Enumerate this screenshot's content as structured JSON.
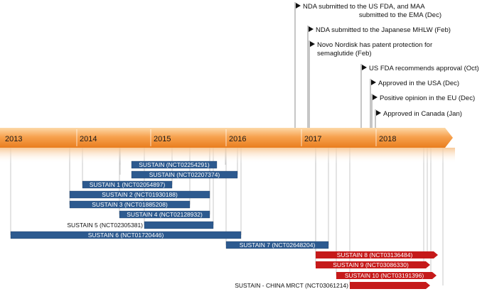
{
  "years": [
    "2013",
    "2014",
    "2015",
    "2016",
    "2017",
    "2018"
  ],
  "milestones": [
    {
      "lines": [
        "NDA submitted to the US FDA, and MAA",
        "submitted to the EMA (Dec)"
      ],
      "date": "2016-12"
    },
    {
      "lines": [
        "NDA submitted to the Japanese MHLW (Feb)"
      ],
      "date": "2017-02"
    },
    {
      "lines": [
        "Novo Nordisk has patent protection for",
        "semaglutide (Feb)"
      ],
      "date": "2017-02"
    },
    {
      "lines": [
        "US FDA recommends approval (Oct)"
      ],
      "date": "2017-10"
    },
    {
      "lines": [
        "Approved in the USA (Dec)"
      ],
      "date": "2017-12"
    },
    {
      "lines": [
        "Positive opinion in the EU (Dec)"
      ],
      "date": "2017-12"
    },
    {
      "lines": [
        "Approved in Canada (Jan)"
      ],
      "date": "2018-01"
    }
  ],
  "trials": [
    {
      "label": "SUSTAIN (NCT02254291)",
      "color": "blue"
    },
    {
      "label": "SUSTAIN (NCT02207374)",
      "color": "blue"
    },
    {
      "label": "SUSTAIN 1 (NCT02054897)",
      "color": "blue"
    },
    {
      "label": "SUSTAIN 2 (NCT01930188)",
      "color": "blue"
    },
    {
      "label": "SUSTAIN 3 (NCT01885208)",
      "color": "blue"
    },
    {
      "label": "SUSTAIN 4 (NCT02128932)",
      "color": "blue"
    },
    {
      "label": "SUSTAIN 5 (NCT02305381)",
      "color": "blue"
    },
    {
      "label": "SUSTAIN 6 (NCT01720446)",
      "color": "blue"
    },
    {
      "label": "SUSTAIN 7 (NCT02648204)",
      "color": "blue"
    },
    {
      "label": "SUSTAIN 8 (NCT03136484)",
      "color": "red"
    },
    {
      "label": "SUSTAIN 9 (NCT03086330)",
      "color": "red"
    },
    {
      "label": "SUSTAIN 10 (NCT03191396)",
      "color": "red"
    },
    {
      "label": "SUSTAIN - CHINA MRCT (NCT03061214)",
      "color": "red"
    }
  ],
  "colors": {
    "band_top": "#fdd9a8",
    "band_mid": "#f7a24f",
    "band_bottom": "#e97d1e",
    "blue_bar": "#2d5a8f",
    "red_bar": "#c51a1a",
    "guide_line": "#bdbdbd",
    "milestone_line": "#8c8c8c"
  }
}
